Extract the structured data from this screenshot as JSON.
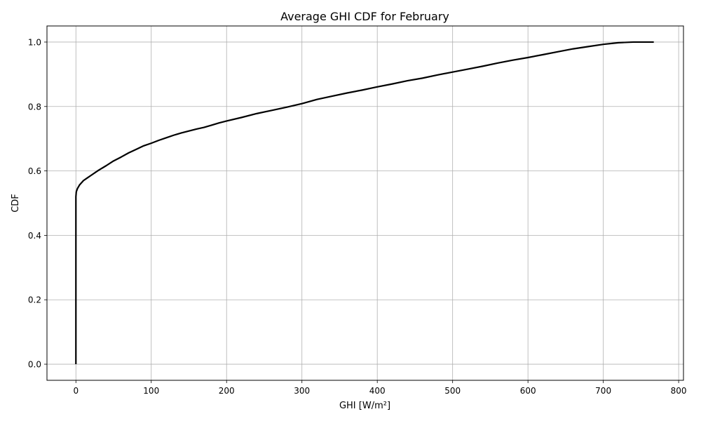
{
  "chart_data": {
    "type": "line",
    "title": "Average GHI CDF for February",
    "xlabel": "GHI [W/m²]",
    "ylabel": "CDF",
    "xlim": [
      -38.4,
      806.4
    ],
    "ylim": [
      -0.05,
      1.05
    ],
    "x_ticks": [
      0,
      100,
      200,
      300,
      400,
      500,
      600,
      700,
      800
    ],
    "y_ticks": [
      0.0,
      0.2,
      0.4,
      0.6,
      0.8,
      1.0
    ],
    "x_tick_labels": [
      "0",
      "100",
      "200",
      "300",
      "400",
      "500",
      "600",
      "700",
      "800"
    ],
    "y_tick_labels": [
      "0.0",
      "0.2",
      "0.4",
      "0.6",
      "0.8",
      "1.0"
    ],
    "grid": true,
    "line_color": "#000000",
    "grid_color": "#b0b0b0",
    "series": [
      {
        "x": [
          0,
          0,
          0,
          0.5,
          2,
          5,
          10,
          15,
          20,
          30,
          40,
          50,
          60,
          70,
          80,
          90,
          100,
          110,
          120,
          130,
          140,
          150,
          160,
          170,
          180,
          190,
          200,
          220,
          240,
          260,
          280,
          300,
          320,
          340,
          360,
          380,
          400,
          420,
          440,
          460,
          480,
          500,
          520,
          540,
          560,
          580,
          600,
          620,
          640,
          660,
          680,
          700,
          720,
          740,
          767
        ],
        "y": [
          0.0,
          0.3,
          0.52,
          0.535,
          0.545,
          0.557,
          0.57,
          0.578,
          0.586,
          0.602,
          0.616,
          0.631,
          0.643,
          0.656,
          0.667,
          0.678,
          0.686,
          0.695,
          0.703,
          0.711,
          0.718,
          0.724,
          0.73,
          0.735,
          0.742,
          0.749,
          0.755,
          0.766,
          0.778,
          0.788,
          0.798,
          0.809,
          0.822,
          0.832,
          0.842,
          0.851,
          0.861,
          0.87,
          0.88,
          0.888,
          0.898,
          0.907,
          0.916,
          0.925,
          0.935,
          0.944,
          0.952,
          0.961,
          0.97,
          0.979,
          0.986,
          0.993,
          0.998,
          1.0,
          1.0
        ]
      }
    ]
  }
}
